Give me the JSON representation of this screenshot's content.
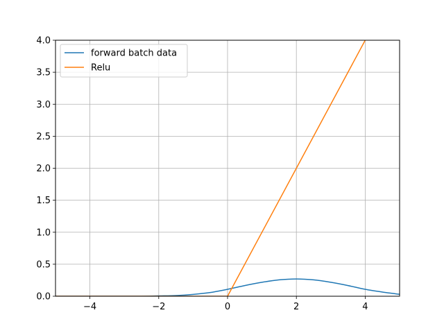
{
  "chart_data": {
    "type": "line",
    "title": "",
    "xlabel": "",
    "ylabel": "",
    "xlim": [
      -5,
      5
    ],
    "ylim": [
      0,
      4
    ],
    "xticks": [
      -4,
      -2,
      0,
      2,
      4
    ],
    "xtick_labels": [
      "−4",
      "−2",
      "0",
      "2",
      "4"
    ],
    "yticks": [
      0.0,
      0.5,
      1.0,
      1.5,
      2.0,
      2.5,
      3.0,
      3.5,
      4.0
    ],
    "ytick_labels": [
      "0.0",
      "0.5",
      "1.0",
      "1.5",
      "2.0",
      "2.5",
      "3.0",
      "3.5",
      "4.0"
    ],
    "grid": true,
    "legend_position": "top-left",
    "series": [
      {
        "name": "forward batch data",
        "color": "#1f77b4",
        "x": [
          -5.0,
          -4.5,
          -4.0,
          -3.5,
          -3.0,
          -2.5,
          -2.0,
          -1.5,
          -1.0,
          -0.5,
          0.0,
          0.5,
          1.0,
          1.5,
          2.0,
          2.5,
          3.0,
          3.5,
          4.0,
          4.5,
          5.0
        ],
        "y": [
          0.0,
          0.0,
          0.0,
          0.0,
          0.0,
          0.0,
          0.005,
          0.011,
          0.029,
          0.058,
          0.108,
          0.167,
          0.218,
          0.256,
          0.27,
          0.256,
          0.218,
          0.167,
          0.108,
          0.065,
          0.03
        ]
      },
      {
        "name": "Relu",
        "color": "#ff7f0e",
        "x": [
          -5.0,
          0.0,
          4.0
        ],
        "y": [
          0.0,
          0.0,
          4.0
        ]
      }
    ]
  }
}
